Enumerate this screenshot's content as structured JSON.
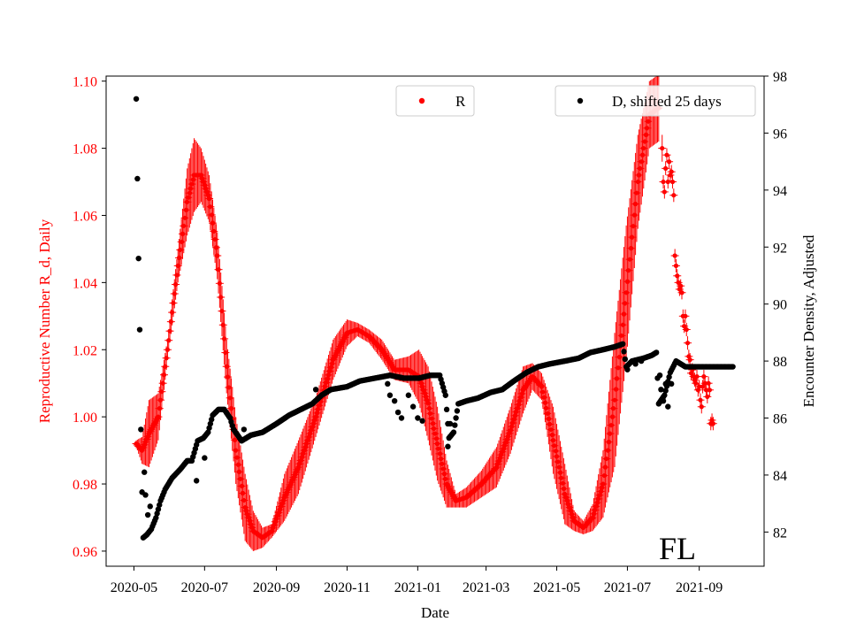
{
  "chart_data": {
    "type": "scatter",
    "region_label": "FL",
    "xlabel": "Date",
    "ylabel_left": "Reproductive Number R_d, Daily",
    "ylabel_right": "Encounter Density, Adjusted",
    "xlim": [
      "2020-04-07",
      "2021-10-27"
    ],
    "ylim_left": [
      0.9555,
      1.1015
    ],
    "ylim_right": [
      80.8,
      98.0
    ],
    "x_ticks": [
      "2020-05",
      "2020-07",
      "2020-09",
      "2020-11",
      "2021-01",
      "2021-03",
      "2021-05",
      "2021-07",
      "2021-09"
    ],
    "y_ticks_left": [
      "0.96",
      "0.98",
      "1.00",
      "1.02",
      "1.04",
      "1.06",
      "1.08",
      "1.10"
    ],
    "y_ticks_right": [
      "82",
      "84",
      "86",
      "88",
      "90",
      "92",
      "94",
      "96",
      "98"
    ],
    "legend": {
      "R_label": "R",
      "D_label": "D, shifted 25 days",
      "R_placement": "top-center",
      "D_placement": "top-right"
    },
    "colors": {
      "R": "#ff0000",
      "D": "#000000",
      "left_axis_text": "#ff0000",
      "right_axis_text": "#000000"
    },
    "series": [
      {
        "name": "R",
        "axis": "left",
        "marker": "point + vertical error bar",
        "keyframes": [
          [
            "2020-05-03",
            0.992,
            0.001
          ],
          [
            "2020-05-08",
            0.99,
            0.004
          ],
          [
            "2020-05-14",
            0.995,
            0.01
          ],
          [
            "2020-05-22",
            1.0,
            0.007
          ],
          [
            "2020-05-30",
            1.02,
            0.003
          ],
          [
            "2020-06-08",
            1.045,
            0.005
          ],
          [
            "2020-06-16",
            1.064,
            0.01
          ],
          [
            "2020-06-22",
            1.072,
            0.011
          ],
          [
            "2020-06-28",
            1.072,
            0.008
          ],
          [
            "2020-07-05",
            1.065,
            0.007
          ],
          [
            "2020-07-12",
            1.048,
            0.007
          ],
          [
            "2020-07-20",
            1.015,
            0.008
          ],
          [
            "2020-07-28",
            0.99,
            0.01
          ],
          [
            "2020-08-05",
            0.973,
            0.01
          ],
          [
            "2020-08-12",
            0.966,
            0.006
          ],
          [
            "2020-08-20",
            0.964,
            0.003
          ],
          [
            "2020-08-28",
            0.966,
            0.002
          ],
          [
            "2020-09-08",
            0.976,
            0.007
          ],
          [
            "2020-09-20",
            0.985,
            0.008
          ],
          [
            "2020-10-05",
            1.0,
            0.006
          ],
          [
            "2020-10-20",
            1.017,
            0.006
          ],
          [
            "2020-11-01",
            1.025,
            0.004
          ],
          [
            "2020-11-10",
            1.026,
            0.002
          ],
          [
            "2020-11-20",
            1.024,
            0.002
          ],
          [
            "2020-12-01",
            1.02,
            0.003
          ],
          [
            "2020-12-12",
            1.014,
            0.003
          ],
          [
            "2020-12-24",
            1.014,
            0.004
          ],
          [
            "2021-01-02",
            1.012,
            0.008
          ],
          [
            "2021-01-10",
            1.004,
            0.011
          ],
          [
            "2021-01-18",
            0.992,
            0.011
          ],
          [
            "2021-01-26",
            0.98,
            0.007
          ],
          [
            "2021-02-03",
            0.975,
            0.002
          ],
          [
            "2021-02-12",
            0.976,
            0.003
          ],
          [
            "2021-02-25",
            0.98,
            0.004
          ],
          [
            "2021-03-10",
            0.985,
            0.006
          ],
          [
            "2021-03-22",
            0.996,
            0.007
          ],
          [
            "2021-04-02",
            1.008,
            0.007
          ],
          [
            "2021-04-10",
            1.012,
            0.004
          ],
          [
            "2021-04-18",
            1.009,
            0.004
          ],
          [
            "2021-04-28",
            0.993,
            0.01
          ],
          [
            "2021-05-08",
            0.977,
            0.009
          ],
          [
            "2021-05-16",
            0.969,
            0.003
          ],
          [
            "2021-05-24",
            0.967,
            0.002
          ],
          [
            "2021-06-01",
            0.97,
            0.004
          ],
          [
            "2021-06-10",
            0.98,
            0.01
          ],
          [
            "2021-06-20",
            1.005,
            0.02
          ],
          [
            "2021-06-30",
            1.037,
            0.02
          ],
          [
            "2021-07-10",
            1.07,
            0.014
          ],
          [
            "2021-07-20",
            1.09,
            0.01
          ],
          [
            "2021-07-28",
            1.092,
            0.01
          ]
        ],
        "isolated_points": [
          [
            "2021-07-31",
            1.08,
            0.004
          ],
          [
            "2021-08-01",
            1.07,
            0.002
          ],
          [
            "2021-08-02",
            1.067,
            0.002
          ],
          [
            "2021-08-03",
            1.074,
            0.002
          ],
          [
            "2021-08-04",
            1.078,
            0.002
          ],
          [
            "2021-08-05",
            1.07,
            0.002
          ],
          [
            "2021-08-06",
            1.076,
            0.002
          ],
          [
            "2021-08-07",
            1.072,
            0.002
          ],
          [
            "2021-08-08",
            1.073,
            0.002
          ],
          [
            "2021-08-09",
            1.07,
            0.002
          ],
          [
            "2021-08-10",
            1.066,
            0.002
          ],
          [
            "2021-08-11",
            1.048,
            0.002
          ],
          [
            "2021-08-12",
            1.045,
            0.002
          ],
          [
            "2021-08-13",
            1.042,
            0.002
          ],
          [
            "2021-08-14",
            1.04,
            0.002
          ],
          [
            "2021-08-15",
            1.038,
            0.002
          ],
          [
            "2021-08-16",
            1.039,
            0.002
          ],
          [
            "2021-08-17",
            1.037,
            0.002
          ],
          [
            "2021-08-18",
            1.03,
            0.002
          ],
          [
            "2021-08-19",
            1.027,
            0.002
          ],
          [
            "2021-08-20",
            1.03,
            0.002
          ],
          [
            "2021-08-21",
            1.026,
            0.002
          ],
          [
            "2021-08-22",
            1.022,
            0.002
          ],
          [
            "2021-08-23",
            1.018,
            0.002
          ],
          [
            "2021-08-24",
            1.017,
            0.002
          ],
          [
            "2021-08-25",
            1.013,
            0.002
          ],
          [
            "2021-08-26",
            1.014,
            0.002
          ],
          [
            "2021-08-27",
            1.012,
            0.002
          ],
          [
            "2021-08-28",
            1.011,
            0.002
          ],
          [
            "2021-08-29",
            1.01,
            0.002
          ],
          [
            "2021-08-30",
            1.012,
            0.002
          ],
          [
            "2021-08-31",
            1.008,
            0.002
          ],
          [
            "2021-09-01",
            1.009,
            0.002
          ],
          [
            "2021-09-02",
            1.005,
            0.002
          ],
          [
            "2021-09-03",
            1.003,
            0.002
          ],
          [
            "2021-09-04",
            1.009,
            0.002
          ],
          [
            "2021-09-05",
            1.012,
            0.002
          ],
          [
            "2021-09-06",
            1.01,
            0.002
          ],
          [
            "2021-09-07",
            1.008,
            0.002
          ],
          [
            "2021-09-08",
            1.006,
            0.002
          ],
          [
            "2021-09-09",
            1.01,
            0.002
          ],
          [
            "2021-09-10",
            1.008,
            0.002
          ],
          [
            "2021-09-11",
            0.998,
            0.002
          ],
          [
            "2021-09-12",
            0.999,
            0.002
          ],
          [
            "2021-09-13",
            0.998,
            0.002
          ]
        ]
      },
      {
        "name": "D, shifted 25 days",
        "axis": "right",
        "marker": "point",
        "keyframes": [
          [
            "2020-05-03",
            97.2
          ],
          [
            "2020-05-04",
            94.4
          ],
          [
            "2020-05-05",
            91.6
          ],
          [
            "2020-05-06",
            89.1
          ],
          [
            "2020-05-07",
            85.6
          ],
          [
            "2020-05-08",
            83.4
          ],
          [
            "2020-05-09",
            81.8
          ],
          [
            "2020-05-12",
            81.9
          ],
          [
            "2020-05-16",
            82.1
          ],
          [
            "2020-05-20",
            82.5
          ],
          [
            "2020-05-24",
            83.1
          ],
          [
            "2020-05-28",
            83.5
          ],
          [
            "2020-06-03",
            83.9
          ],
          [
            "2020-06-10",
            84.2
          ],
          [
            "2020-06-16",
            84.5
          ],
          [
            "2020-06-20",
            84.5
          ],
          [
            "2020-06-25",
            85.2
          ],
          [
            "2020-06-30",
            85.3
          ],
          [
            "2020-07-04",
            85.5
          ],
          [
            "2020-07-08",
            86.1
          ],
          [
            "2020-07-13",
            86.3
          ],
          [
            "2020-07-18",
            86.3
          ],
          [
            "2020-07-23",
            86.0
          ],
          [
            "2020-07-26",
            85.6
          ],
          [
            "2020-08-02",
            85.2
          ],
          [
            "2020-08-10",
            85.4
          ],
          [
            "2020-08-20",
            85.5
          ],
          [
            "2020-09-01",
            85.8
          ],
          [
            "2020-09-12",
            86.1
          ],
          [
            "2020-09-22",
            86.3
          ],
          [
            "2020-10-02",
            86.5
          ],
          [
            "2020-10-10",
            86.8
          ],
          [
            "2020-10-18",
            87.0
          ],
          [
            "2020-11-01",
            87.1
          ],
          [
            "2020-11-12",
            87.3
          ],
          [
            "2020-11-25",
            87.4
          ],
          [
            "2020-12-08",
            87.5
          ],
          [
            "2020-12-20",
            87.4
          ],
          [
            "2021-01-02",
            87.4
          ],
          [
            "2021-01-12",
            87.5
          ],
          [
            "2021-01-20",
            87.5
          ],
          [
            "2021-01-25",
            86.8
          ],
          [
            "2021-01-28",
            85.3
          ],
          [
            "2021-02-01",
            85.5
          ],
          [
            "2021-02-05",
            86.5
          ],
          [
            "2021-02-12",
            86.6
          ],
          [
            "2021-02-22",
            86.7
          ],
          [
            "2021-03-05",
            86.9
          ],
          [
            "2021-03-15",
            87.0
          ],
          [
            "2021-03-25",
            87.3
          ],
          [
            "2021-04-05",
            87.6
          ],
          [
            "2021-04-15",
            87.8
          ],
          [
            "2021-04-25",
            87.9
          ],
          [
            "2021-05-08",
            88.0
          ],
          [
            "2021-05-20",
            88.1
          ],
          [
            "2021-05-30",
            88.3
          ],
          [
            "2021-06-10",
            88.4
          ],
          [
            "2021-06-20",
            88.5
          ],
          [
            "2021-06-27",
            88.6
          ],
          [
            "2021-06-30",
            87.8
          ],
          [
            "2021-07-05",
            88.0
          ],
          [
            "2021-07-15",
            88.1
          ],
          [
            "2021-07-22",
            88.2
          ],
          [
            "2021-07-26",
            88.3
          ],
          [
            "2021-07-28",
            86.5
          ],
          [
            "2021-08-02",
            86.8
          ],
          [
            "2021-08-07",
            87.6
          ],
          [
            "2021-08-12",
            88.0
          ],
          [
            "2021-08-20",
            87.8
          ],
          [
            "2021-09-10",
            87.8
          ],
          [
            "2021-09-22",
            87.8
          ],
          [
            "2021-09-30",
            87.8
          ]
        ],
        "isolated_points": [
          [
            "2020-05-10",
            84.1
          ],
          [
            "2020-05-11",
            83.3
          ],
          [
            "2020-05-13",
            82.6
          ],
          [
            "2020-05-15",
            82.9
          ],
          [
            "2020-06-24",
            83.8
          ],
          [
            "2020-07-01",
            84.6
          ],
          [
            "2020-08-04",
            85.6
          ],
          [
            "2020-10-05",
            87.0
          ],
          [
            "2020-12-06",
            87.2
          ],
          [
            "2020-12-08",
            86.8
          ],
          [
            "2020-12-12",
            86.6
          ],
          [
            "2020-12-15",
            86.2
          ],
          [
            "2020-12-18",
            86.0
          ],
          [
            "2020-12-24",
            86.8
          ],
          [
            "2020-12-28",
            86.4
          ],
          [
            "2021-01-01",
            86.0
          ],
          [
            "2021-01-05",
            85.9
          ],
          [
            "2021-01-27",
            85.0
          ],
          [
            "2021-01-29",
            85.8
          ],
          [
            "2021-07-01",
            87.7
          ],
          [
            "2021-07-08",
            87.9
          ],
          [
            "2021-07-13",
            88.0
          ],
          [
            "2021-07-29",
            87.5
          ],
          [
            "2021-07-30",
            87.0
          ],
          [
            "2021-08-01",
            86.6
          ],
          [
            "2021-08-03",
            87.2
          ],
          [
            "2021-08-05",
            86.4
          ],
          [
            "2021-08-08",
            87.2
          ]
        ]
      }
    ]
  }
}
